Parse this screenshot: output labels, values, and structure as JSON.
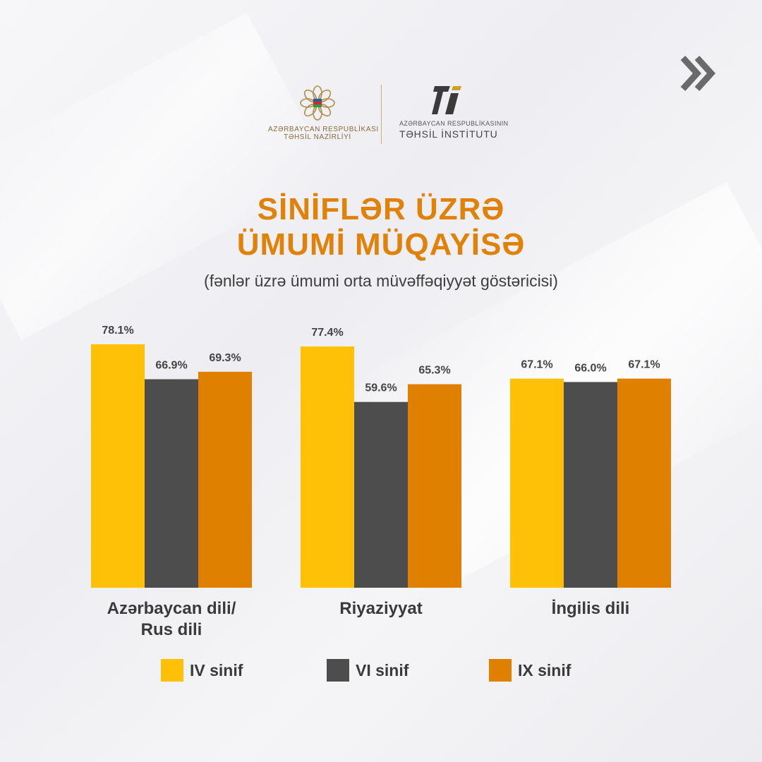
{
  "header": {
    "ministry_line1": "AZƏRBAYCAN RESPUBLİKASI",
    "ministry_line2": "TƏHSİL NAZİRLİYİ",
    "institute_line1": "AZƏRBAYCAN RESPUBLİKASININ",
    "institute_line2": "TƏHSİL İNSTİTUTU"
  },
  "title_line1": "SİNİFLƏR ÜZRƏ",
  "title_line2": "ÜMUMİ MÜQAYİSƏ",
  "subtitle": "(fənlər üzrə ümumi orta müvəffəqiyyət göstəricisi)",
  "colors": {
    "iv": "#ffc107",
    "vi": "#4d4d4d",
    "ix": "#e08000"
  },
  "chart_data": {
    "type": "bar",
    "categories": [
      "Azərbaycan dili/\nRus dili",
      "Riyaziyyat",
      "İngilis dili"
    ],
    "series": [
      {
        "name": "IV sinif",
        "values": [
          78.1,
          77.4,
          67.1
        ],
        "labels": [
          "78.1%",
          "77.4%",
          "67.1%"
        ]
      },
      {
        "name": "VI sinif",
        "values": [
          66.9,
          59.6,
          66.0
        ],
        "labels": [
          "66.9%",
          "59.6%",
          "66.0%"
        ]
      },
      {
        "name": "IX sinif",
        "values": [
          69.3,
          65.3,
          67.1
        ],
        "labels": [
          "69.3%",
          "65.3%",
          "67.1%"
        ]
      }
    ],
    "ylim": [
      0,
      100
    ],
    "grid": false,
    "legend_position": "bottom"
  }
}
